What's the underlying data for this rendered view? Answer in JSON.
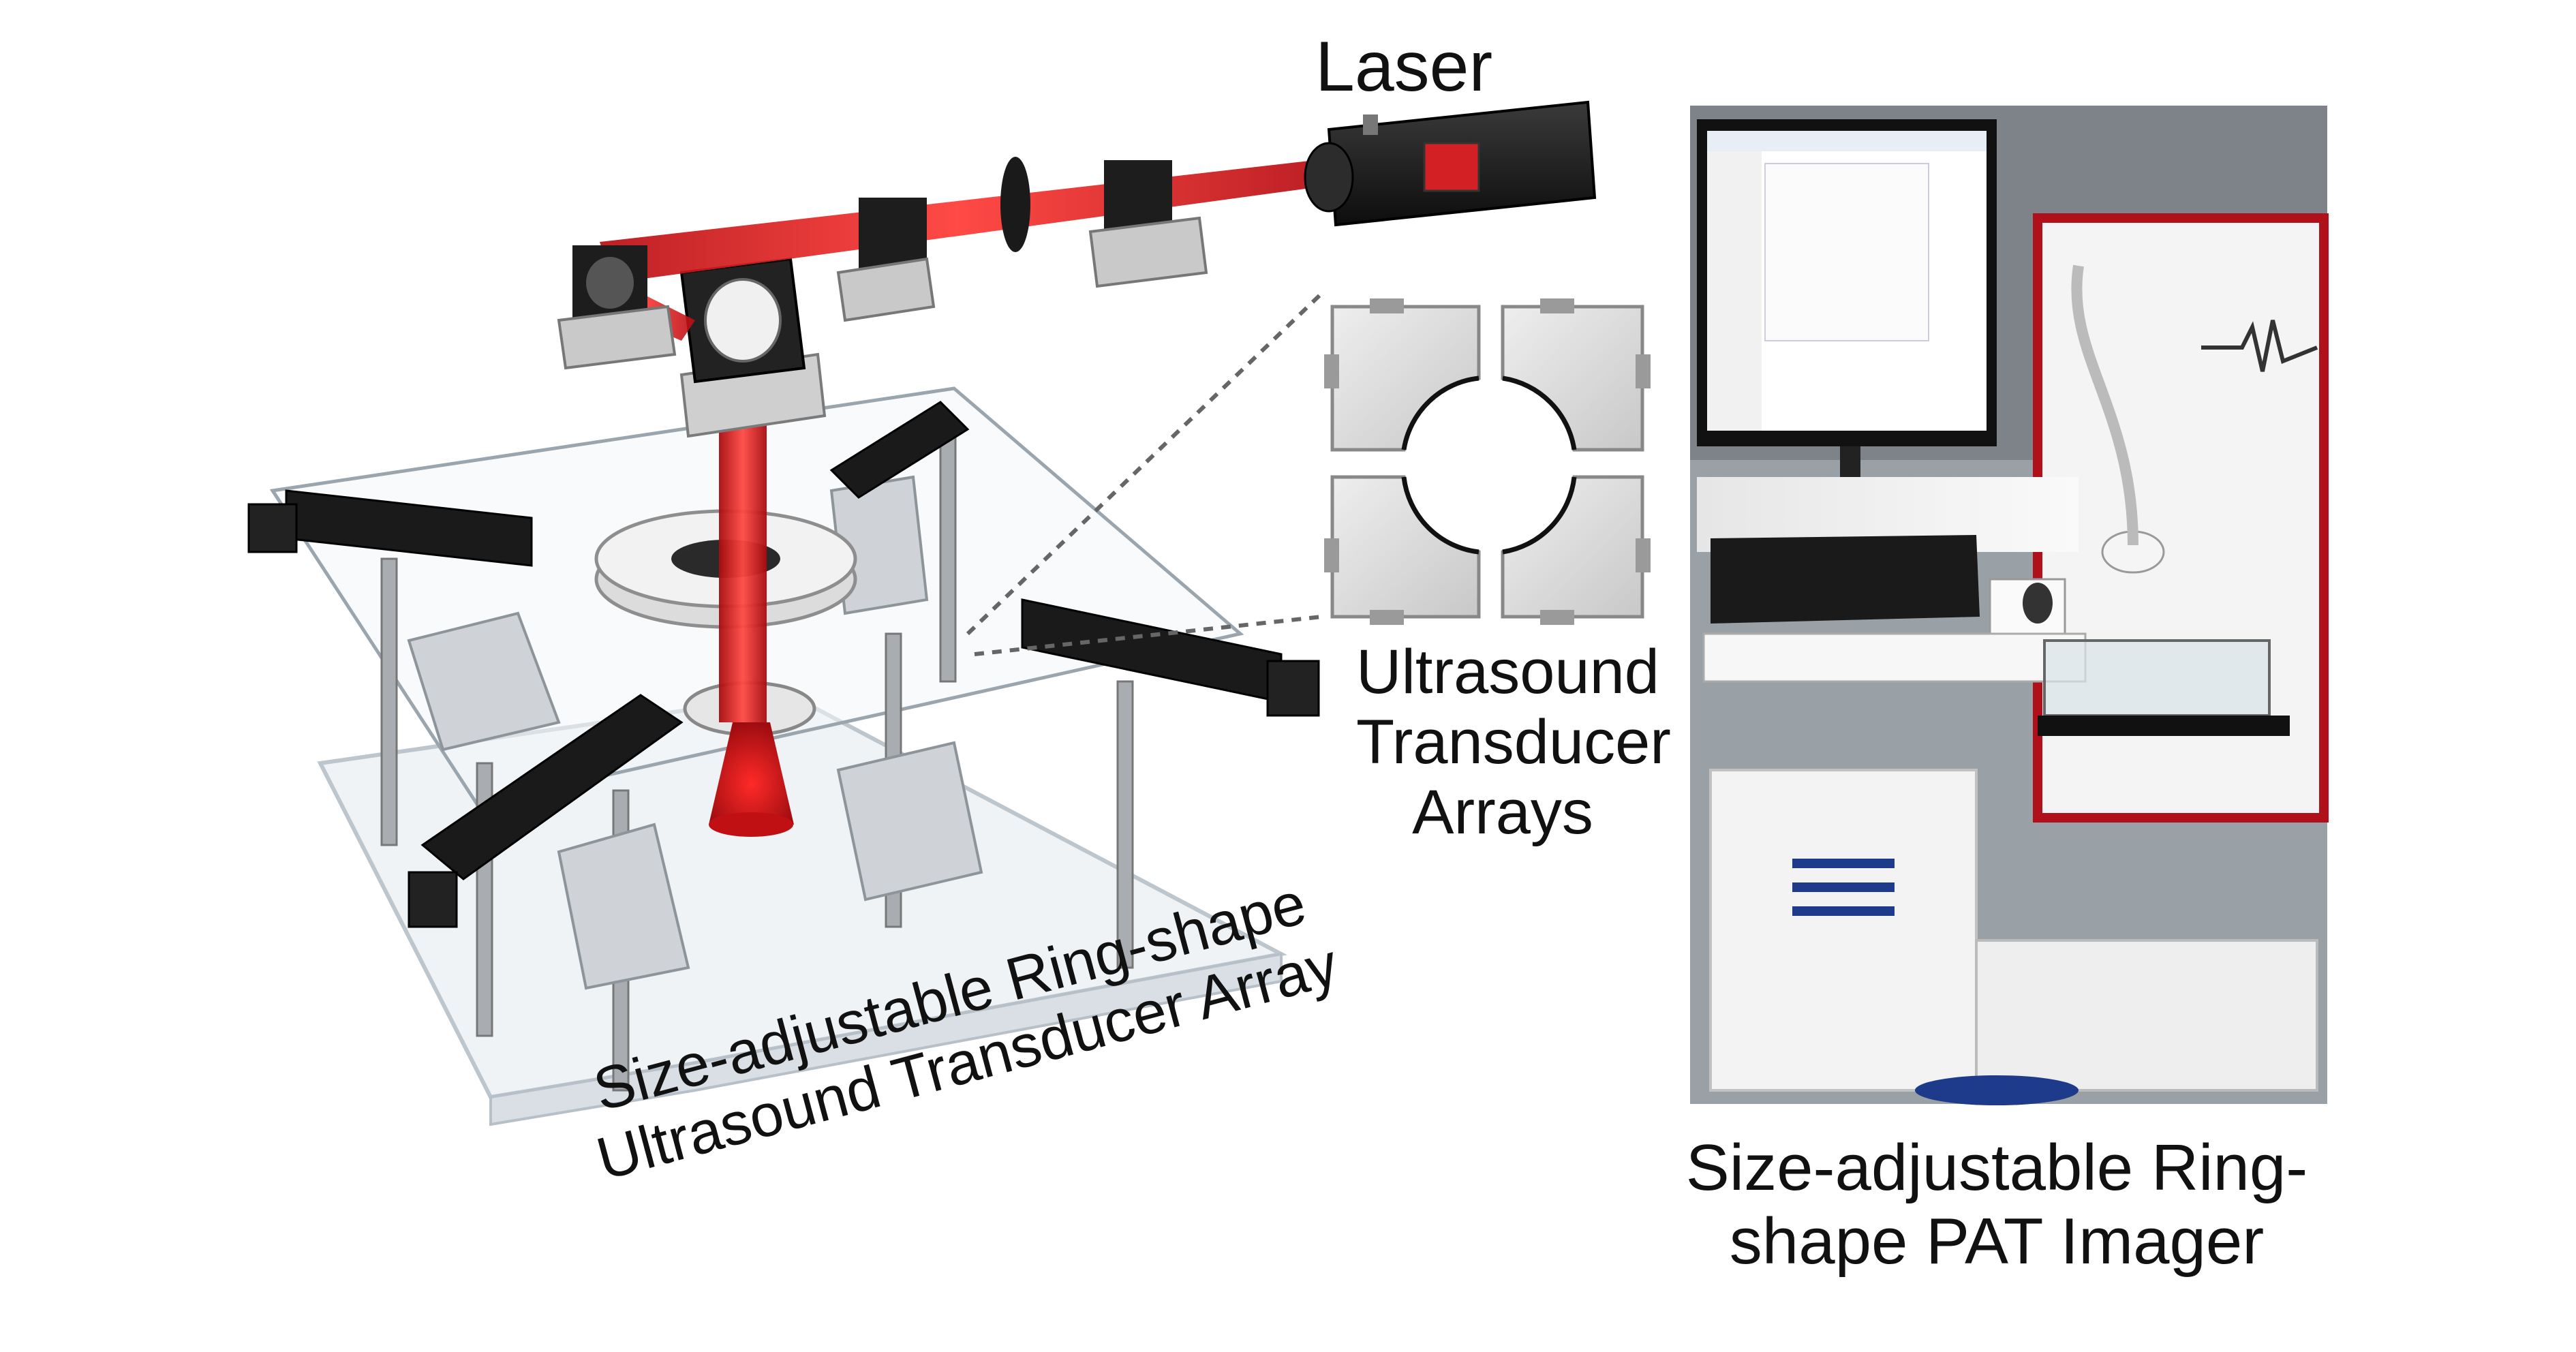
{
  "labels": {
    "laser": "Laser",
    "transducer_arrays": [
      "Ultrasound",
      "Transducer",
      "Arrays"
    ],
    "array_caption": [
      "Size-adjustable Ring-shape",
      "Ultrasound Transducer Array"
    ],
    "imager_caption": [
      "Size-adjustable Ring-",
      "shape PAT Imager"
    ]
  },
  "colors": {
    "beam": "#e0161b",
    "hardware": "#1c1c1c",
    "acrylic": "#e9eef2",
    "transducer": "#d6d6d6"
  }
}
